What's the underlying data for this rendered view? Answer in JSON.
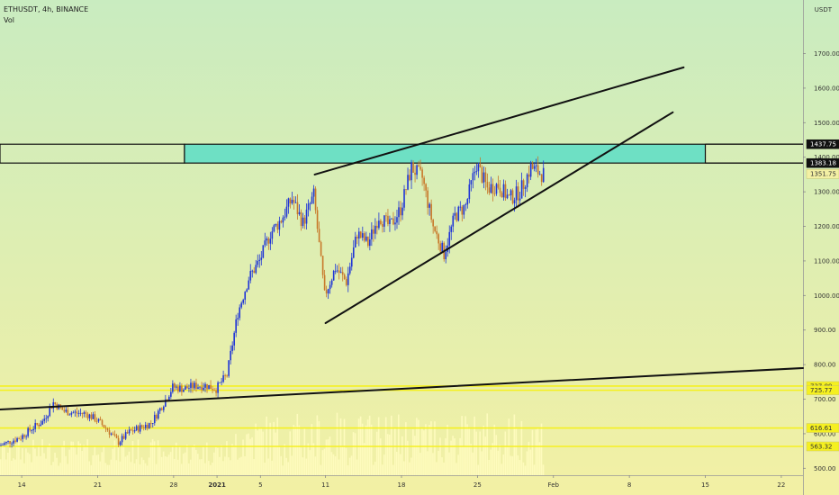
{
  "header": {
    "symbol": "ETHUSDT, 4h, BINANCE",
    "volume_label": "Vol"
  },
  "axis": {
    "unit_label": "USDT"
  },
  "colors": {
    "bg_top": "#c9ecc0",
    "bg_bottom": "#f3f0a4",
    "candle_up": "#1f35d6",
    "candle_down": "#c8782a",
    "volume": "#fffcc0",
    "zone_fill": "#6ee0c4",
    "level": "#f5f020",
    "trendline": "#111111"
  },
  "chart_data": {
    "type": "candlestick",
    "title": "ETHUSDT, 4h, BINANCE",
    "ylabel": "USDT",
    "ylim": [
      480,
      1855
    ],
    "xlim": [
      "2020-12-12",
      "2021-02-24"
    ],
    "x_ticks": [
      {
        "label": "14",
        "date": "2020-12-14"
      },
      {
        "label": "21",
        "date": "2020-12-21"
      },
      {
        "label": "28",
        "date": "2020-12-28"
      },
      {
        "label": "2021",
        "date": "2021-01-01",
        "bold": true
      },
      {
        "label": "5",
        "date": "2021-01-05"
      },
      {
        "label": "11",
        "date": "2021-01-11"
      },
      {
        "label": "18",
        "date": "2021-01-18"
      },
      {
        "label": "25",
        "date": "2021-01-25"
      },
      {
        "label": "Feb",
        "date": "2021-02-01"
      },
      {
        "label": "8",
        "date": "2021-02-08"
      },
      {
        "label": "15",
        "date": "2021-02-15"
      },
      {
        "label": "22",
        "date": "2021-02-22"
      }
    ],
    "y_ticks": [
      "1700.00",
      "1600.00",
      "1500.00",
      "1400.00",
      "1300.00",
      "1200.00",
      "1100.00",
      "1000.00",
      "900.00",
      "800.00",
      "700.00",
      "600.00",
      "500.00"
    ],
    "price_tags": [
      {
        "label": "1437.75",
        "value": 1437.75,
        "bg": "#111111",
        "fg": "#ffffff"
      },
      {
        "label": "1383.18",
        "value": 1383.18,
        "bg": "#111111",
        "fg": "#ffffff"
      },
      {
        "label": "1351.75",
        "value": 1351.75,
        "bg": "#f3f0a4",
        "fg": "#333333"
      },
      {
        "label": "737.89",
        "value": 737.89,
        "bg": "#f5f020",
        "fg": "#333333"
      },
      {
        "label": "725.77",
        "value": 725.77,
        "bg": "#f5f020",
        "fg": "#333333"
      },
      {
        "label": "616.61",
        "value": 616.61,
        "bg": "#f5f020",
        "fg": "#333333"
      },
      {
        "label": "563.32",
        "value": 563.32,
        "bg": "#f5f020",
        "fg": "#333333"
      }
    ],
    "horizontal_levels": [
      737.89,
      725.77,
      616.61,
      563.32
    ],
    "resistance_zone": {
      "from": "2020-12-12",
      "zone_start": "2020-12-29",
      "to": "2021-02-15",
      "low": 1383.18,
      "high": 1437.75
    },
    "trendlines": [
      {
        "name": "wedge-upper",
        "points": [
          [
            "2021-01-10",
            1350
          ],
          [
            "2021-02-13",
            1660
          ]
        ]
      },
      {
        "name": "wedge-lower",
        "points": [
          [
            "2021-01-11",
            920
          ],
          [
            "2021-02-12",
            1530
          ]
        ]
      },
      {
        "name": "long-term-support",
        "points": [
          [
            "2020-12-12",
            670
          ],
          [
            "2021-02-24",
            790
          ]
        ]
      }
    ],
    "price_path": [
      [
        "2020-12-12",
        565
      ],
      [
        "2020-12-14",
        590
      ],
      [
        "2020-12-15",
        615
      ],
      [
        "2020-12-16",
        635
      ],
      [
        "2020-12-17",
        690
      ],
      [
        "2020-12-18",
        665
      ],
      [
        "2020-12-19",
        660
      ],
      [
        "2020-12-20",
        658
      ],
      [
        "2020-12-21",
        640
      ],
      [
        "2020-12-22",
        612
      ],
      [
        "2020-12-23",
        575
      ],
      [
        "2020-12-24",
        605
      ],
      [
        "2020-12-25",
        618
      ],
      [
        "2020-12-26",
        630
      ],
      [
        "2020-12-27",
        680
      ],
      [
        "2020-12-28",
        735
      ],
      [
        "2020-12-29",
        730
      ],
      [
        "2020-12-30",
        738
      ],
      [
        "2020-12-31",
        740
      ],
      [
        "2021-01-01",
        730
      ],
      [
        "2021-01-02",
        770
      ],
      [
        "2021-01-03",
        950
      ],
      [
        "2021-01-04",
        1050
      ],
      [
        "2021-01-05",
        1100
      ],
      [
        "2021-01-06",
        1180
      ],
      [
        "2021-01-07",
        1220
      ],
      [
        "2021-01-08",
        1280
      ],
      [
        "2021-01-09",
        1210
      ],
      [
        "2021-01-10",
        1290
      ],
      [
        "2021-01-11",
        1000
      ],
      [
        "2021-01-12",
        1080
      ],
      [
        "2021-01-13",
        1040
      ],
      [
        "2021-01-14",
        1180
      ],
      [
        "2021-01-15",
        1150
      ],
      [
        "2021-01-16",
        1230
      ],
      [
        "2021-01-17",
        1200
      ],
      [
        "2021-01-18",
        1250
      ],
      [
        "2021-01-19",
        1370
      ],
      [
        "2021-01-20",
        1340
      ],
      [
        "2021-01-21",
        1200
      ],
      [
        "2021-01-22",
        1120
      ],
      [
        "2021-01-23",
        1230
      ],
      [
        "2021-01-24",
        1260
      ],
      [
        "2021-01-25",
        1380
      ],
      [
        "2021-01-26",
        1310
      ],
      [
        "2021-01-27",
        1320
      ],
      [
        "2021-01-28",
        1280
      ],
      [
        "2021-01-29",
        1300
      ],
      [
        "2021-01-30",
        1370
      ],
      [
        "2021-01-31",
        1351.75
      ]
    ]
  }
}
